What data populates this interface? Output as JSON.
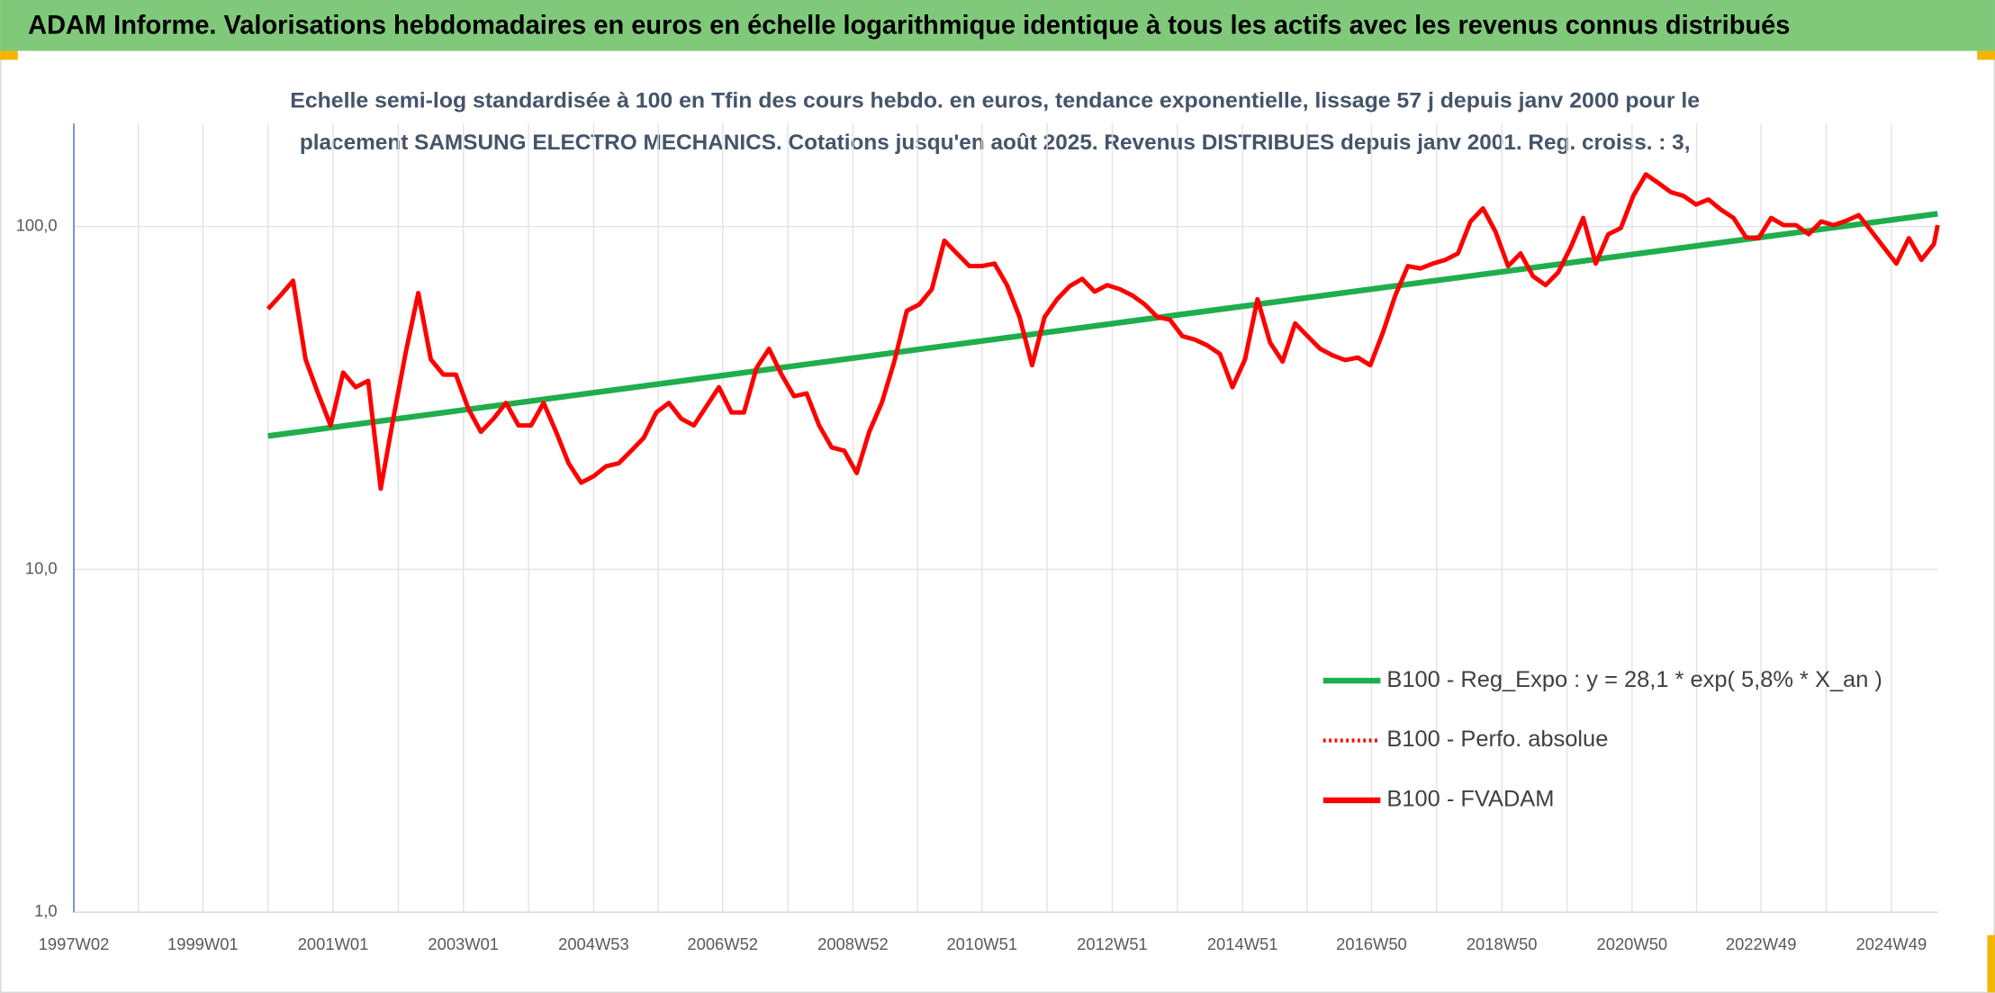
{
  "chart_data": {
    "type": "line",
    "title": "ADAM Informe. Valorisations hebdomadaires en euros en échelle logarithmique identique à tous les actifs avec les revenus connus distribués",
    "subtitle": [
      "Echelle semi-log standardisée à 100 en Tfin des cours hebdo. en euros, tendance exponentielle, lissage 57 j depuis janv 2000 pour le",
      "placement SAMSUNG ELECTRO MECHANICS. Cotations jusqu'en août 2025. Revenus DISTRIBUES depuis janv 2001. Reg. croiss. : 3,"
    ],
    "log_y": true,
    "grid": true,
    "legend": "lower right",
    "ylim": [
      1,
      200
    ],
    "yticks": [
      {
        "value": 1,
        "label": "1,0"
      },
      {
        "value": 10,
        "label": "10,0"
      },
      {
        "value": 100,
        "label": "100,0"
      }
    ],
    "xlim": [
      "1997W02",
      "2025W34"
    ],
    "xticks": [
      "1997W02",
      "1999W01",
      "2001W01",
      "2003W01",
      "2004W53",
      "2006W52",
      "2008W52",
      "2010W51",
      "2012W51",
      "2014W51",
      "2016W50",
      "2018W50",
      "2020W50",
      "2022W49",
      "2024W49"
    ],
    "series": [
      {
        "name": "B100 - Reg_Expo : y = 28,1 * exp( 5,8% *  X_an )",
        "color": "#1fae4b",
        "style": "solid",
        "x": [
          "2000W01",
          "2025W34"
        ],
        "values": [
          24.5,
          109
        ]
      },
      {
        "name": "B100 - Perfo. absolue",
        "color": "#ff0000",
        "style": "dotted"
      },
      {
        "name": "B100 - FVADAM",
        "color": "#ff0000",
        "style": "solid",
        "x": [
          "2000W01",
          "2000W11",
          "2000W21",
          "2000W31",
          "2000W41",
          "2000W51",
          "2001W09",
          "2001W19",
          "2001W29",
          "2001W39",
          "2001W49",
          "2002W07",
          "2002W17",
          "2002W27",
          "2002W37",
          "2002W47",
          "2003W05",
          "2003W15",
          "2003W25",
          "2003W35",
          "2003W45",
          "2004W03",
          "2004W13",
          "2004W23",
          "2004W33",
          "2004W43",
          "2005W01",
          "2005W11",
          "2005W21",
          "2005W31",
          "2005W41",
          "2005W51",
          "2006W09",
          "2006W19",
          "2006W29",
          "2006W39",
          "2006W49",
          "2007W07",
          "2007W17",
          "2007W27",
          "2007W37",
          "2007W47",
          "2008W05",
          "2008W15",
          "2008W25",
          "2008W35",
          "2008W45",
          "2009W03",
          "2009W13",
          "2009W23",
          "2009W33",
          "2009W43",
          "2010W01",
          "2010W11",
          "2010W21",
          "2010W31",
          "2010W41",
          "2010W51",
          "2011W09",
          "2011W19",
          "2011W29",
          "2011W39",
          "2011W49",
          "2012W07",
          "2012W17",
          "2012W27",
          "2012W37",
          "2012W47",
          "2013W05",
          "2013W15",
          "2013W25",
          "2013W35",
          "2013W45",
          "2014W03",
          "2014W13",
          "2014W23",
          "2014W33",
          "2014W43",
          "2015W01",
          "2015W11",
          "2015W21",
          "2015W31",
          "2015W41",
          "2015W51",
          "2016W09",
          "2016W19",
          "2016W29",
          "2016W39",
          "2016W49",
          "2017W07",
          "2017W17",
          "2017W27",
          "2017W37",
          "2017W47",
          "2018W05",
          "2018W15",
          "2018W25",
          "2018W35",
          "2018W45",
          "2019W03",
          "2019W13",
          "2019W23",
          "2019W33",
          "2019W43",
          "2020W01",
          "2020W11",
          "2020W21",
          "2020W31",
          "2020W41",
          "2020W51",
          "2021W09",
          "2021W19",
          "2021W29",
          "2021W39",
          "2021W49",
          "2022W07",
          "2022W17",
          "2022W27",
          "2022W37",
          "2022W47",
          "2023W05",
          "2023W15",
          "2023W25",
          "2023W35",
          "2023W45",
          "2024W03",
          "2024W13",
          "2024W23",
          "2024W33",
          "2024W43",
          "2025W01",
          "2025W11",
          "2025W21",
          "2025W31",
          "2025W34"
        ],
        "values": [
          57.5,
          63,
          69.5,
          41,
          32.6,
          26.3,
          37.5,
          34,
          35.5,
          17.2,
          27.5,
          43,
          64,
          41,
          37,
          37,
          29.4,
          25.2,
          27.5,
          30.6,
          26.3,
          26.3,
          30.6,
          25.2,
          20.4,
          17.9,
          18.7,
          20,
          20.4,
          22.2,
          24.2,
          28.7,
          30.6,
          27.5,
          26.3,
          29.9,
          34,
          28.7,
          28.7,
          38.7,
          44,
          37,
          32,
          32.6,
          26.3,
          22.7,
          22.2,
          19.1,
          25.2,
          30.6,
          40.4,
          56.8,
          59.3,
          65.7,
          91,
          83.5,
          76.7,
          76.7,
          78,
          67.5,
          54.5,
          39.4,
          54.5,
          61.4,
          67,
          70.4,
          64.6,
          67.5,
          65.7,
          63,
          59.3,
          54.5,
          53.5,
          47.9,
          46.8,
          45,
          42.5,
          34,
          41,
          61.4,
          45.9,
          40.4,
          52.2,
          47.9,
          44,
          42.1,
          40.8,
          41.5,
          39.4,
          49,
          63,
          76.7,
          75.5,
          78,
          80,
          83.5,
          103.5,
          113,
          96.6,
          76.7,
          83.5,
          71.6,
          67.5,
          73.5,
          87,
          106,
          78,
          95,
          99,
          123,
          142,
          134,
          126,
          123,
          116,
          120,
          112,
          106,
          93,
          92.5,
          106,
          101,
          101,
          95,
          103.5,
          101,
          104,
          108,
          97,
          87,
          78,
          92.5,
          80,
          89,
          101
        ]
      }
    ]
  }
}
